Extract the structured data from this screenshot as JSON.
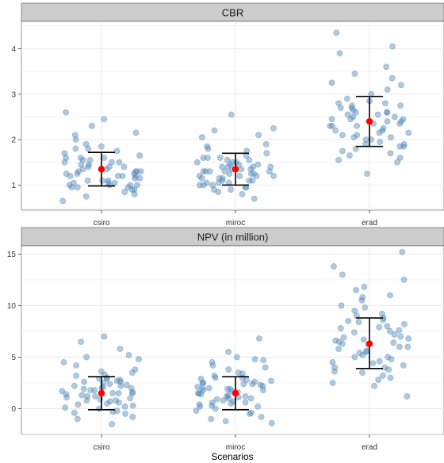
{
  "chart_data": {
    "type": "scatter",
    "xlabel": "Scenarios",
    "categories": [
      "csiro",
      "miroc",
      "erad"
    ],
    "grid": true,
    "colors": {
      "points": "#4f87b8",
      "mean": "#ff0000",
      "errorbar": "#000000",
      "panel_bg": "#ffffff",
      "strip_bg": "#cccccc",
      "grid": "#ebebeb"
    },
    "panels": [
      {
        "title": "CBR",
        "ylim": [
          0.45,
          4.6
        ],
        "yticks": [
          1,
          2,
          3,
          4
        ],
        "groups": [
          {
            "category": "csiro",
            "mean": 1.35,
            "lower": 0.98,
            "upper": 1.72,
            "points": [
              1.0,
              0.95,
              1.3,
              1.5,
              0.65,
              1.6,
              1.2,
              1.1,
              0.9,
              1.4,
              1.8,
              1.25,
              1.55,
              0.85,
              1.15,
              1.05,
              1.45,
              1.7,
              1.35,
              2.1,
              1.0,
              1.3,
              0.8,
              1.6,
              1.2,
              2.15,
              1.9,
              1.5,
              1.1,
              0.95,
              1.25,
              1.4,
              1.65,
              1.0,
              1.3,
              2.6,
              1.15,
              0.9,
              1.55,
              1.2,
              1.75,
              1.05,
              1.45,
              2.0,
              1.3,
              0.75,
              1.6,
              1.2,
              1.0,
              1.85,
              2.3,
              1.4,
              1.1,
              1.5,
              0.95,
              2.45,
              1.25,
              1.35,
              1.8,
              1.05
            ]
          },
          {
            "category": "miroc",
            "mean": 1.35,
            "lower": 1.0,
            "upper": 1.7,
            "points": [
              1.4,
              1.1,
              0.95,
              1.5,
              1.3,
              1.85,
              1.2,
              1.0,
              1.6,
              1.45,
              0.9,
              2.2,
              1.35,
              1.15,
              1.25,
              0.8,
              1.55,
              1.05,
              1.7,
              1.3,
              1.4,
              0.95,
              1.9,
              1.2,
              1.5,
              1.1,
              1.35,
              1.0,
              1.6,
              1.25,
              2.1,
              1.45,
              0.85,
              1.3,
              1.15,
              1.75,
              1.05,
              2.55,
              1.4,
              1.2,
              1.5,
              0.9,
              1.65,
              1.35,
              1.1,
              2.05,
              1.25,
              1.0,
              1.45,
              0.7,
              1.3,
              1.55,
              1.15,
              1.8,
              1.2,
              2.25,
              1.4,
              1.05,
              1.6,
              1.3
            ]
          },
          {
            "category": "erad",
            "mean": 2.4,
            "lower": 1.85,
            "upper": 2.95,
            "points": [
              2.7,
              4.05,
              2.3,
              1.9,
              3.35,
              2.6,
              2.1,
              2.8,
              1.75,
              2.45,
              3.2,
              2.2,
              1.6,
              2.9,
              2.35,
              1.25,
              2.05,
              2.65,
              2.5,
              1.95,
              2.75,
              3.0,
              2.15,
              1.85,
              2.4,
              2.55,
              1.7,
              2.25,
              2.85,
              3.6,
              2.0,
              2.6,
              1.5,
              2.3,
              2.7,
              1.8,
              2.45,
              3.1,
              2.2,
              1.9,
              2.55,
              2.35,
              4.35,
              3.9,
              2.5,
              2.1,
              2.8,
              1.65,
              2.4,
              3.45,
              2.0,
              2.6,
              1.85,
              2.3,
              2.75,
              1.55,
              2.15,
              2.45,
              3.25,
              2.05
            ]
          }
        ]
      },
      {
        "title": "NPV (in million)",
        "ylim": [
          -2.5,
          15.8
        ],
        "yticks": [
          0,
          5,
          10,
          15
        ],
        "groups": [
          {
            "category": "csiro",
            "mean": 1.5,
            "lower": -0.1,
            "upper": 3.1,
            "points": [
              2.0,
              -0.3,
              1.2,
              2.5,
              0.5,
              6.5,
              3.0,
              1.5,
              -0.5,
              0.8,
              2.8,
              4.5,
              1.0,
              0.2,
              3.5,
              1.8,
              -1.5,
              2.2,
              7.0,
              1.5,
              0.0,
              2.6,
              5.0,
              1.3,
              3.8,
              0.7,
              2.1,
              -0.2,
              1.6,
              4.2,
              2.9,
              0.4,
              1.9,
              5.8,
              1.1,
              2.4,
              -0.8,
              3.2,
              0.9,
              2.7,
              1.4,
              4.8,
              0.6,
              2.3,
              -1.0,
              1.7,
              3.6,
              0.3,
              2.0,
              5.2,
              1.2,
              2.6,
              0.1,
              1.8,
              3.3,
              0.8,
              2.2,
              -0.4,
              1.5,
              2.9
            ]
          },
          {
            "category": "miroc",
            "mean": 1.5,
            "lower": -0.1,
            "upper": 3.1,
            "points": [
              2.0,
              1.0,
              -0.5,
              2.5,
              4.0,
              0.3,
              1.8,
              3.0,
              -1.2,
              2.2,
              0.8,
              4.7,
              1.5,
              2.7,
              0.0,
              6.8,
              1.2,
              3.5,
              -1.4,
              2.4,
              0.6,
              1.9,
              4.5,
              0.2,
              2.8,
              1.4,
              -0.2,
              3.2,
              1.0,
              2.1,
              5.5,
              0.5,
              2.6,
              1.7,
              -0.8,
              3.8,
              1.3,
              2.3,
              0.9,
              4.2,
              1.6,
              -0.4,
              2.9,
              0.4,
              1.8,
              5.0,
              1.1,
              2.5,
              0.7,
              3.4,
              1.5,
              -1.0,
              2.0,
              4.8,
              0.2,
              2.4,
              1.2,
              3.0,
              0.6,
              1.9
            ]
          },
          {
            "category": "erad",
            "mean": 6.3,
            "lower": 3.9,
            "upper": 8.8,
            "points": [
              6.5,
              13.8,
              8.5,
              4.0,
              11.0,
              6.0,
              3.5,
              9.5,
              5.5,
              7.5,
              12.5,
              6.8,
              2.5,
              8.0,
              5.0,
              10.5,
              7.0,
              4.5,
              9.0,
              6.2,
              3.0,
              7.8,
              15.2,
              5.8,
              8.8,
              4.2,
              6.6,
              11.5,
              3.8,
              7.2,
              5.2,
              9.8,
              6.4,
              2.2,
              8.2,
              4.8,
              7.6,
              13.0,
              5.6,
              3.2,
              6.9,
              10.0,
              4.4,
              8.6,
              6.0,
              1.2,
              7.4,
              5.0,
              9.2,
              3.6,
              6.3,
              11.8,
              4.6,
              7.9,
              5.4,
              2.8,
              8.4,
              6.7,
              10.8,
              4.0
            ]
          }
        ]
      }
    ]
  }
}
